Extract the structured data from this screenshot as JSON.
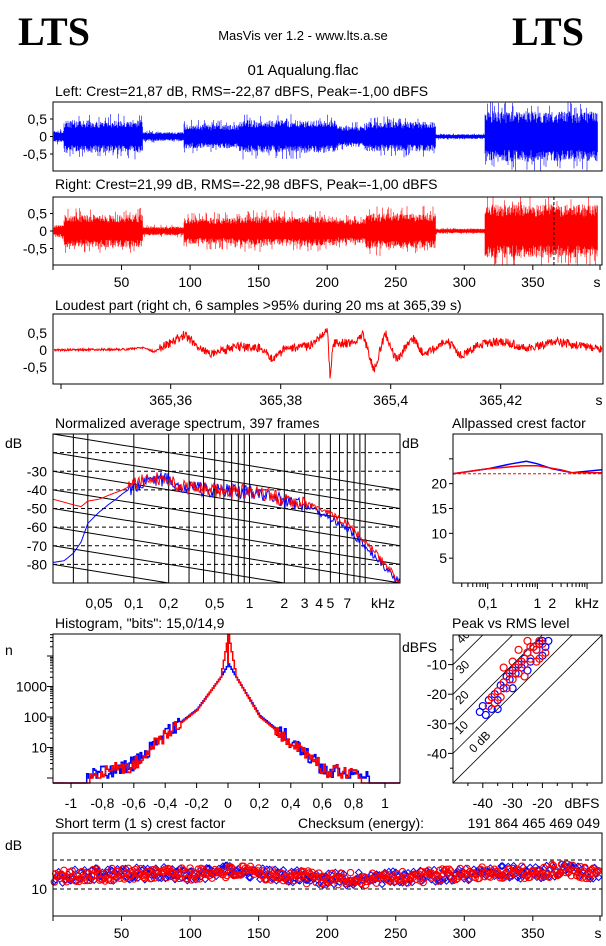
{
  "header": {
    "logo_left": "LTS",
    "logo_right": "LTS",
    "app_title": "MasVis ver 1.2 - www.lts.a.se",
    "file_name": "01 Aqualung.flac"
  },
  "colors": {
    "left": "#0000ff",
    "right": "#ff0000",
    "grid": "#000000"
  },
  "chart_data": [
    {
      "id": "left_waveform",
      "type": "area",
      "title": "Left: Crest=21,87 dB, RMS=-22,87 dBFS, Peak=-1,00 dBFS",
      "ylim": [
        -1,
        1
      ],
      "yticks": [
        "0,5",
        "0",
        "-0,5"
      ],
      "ytick_values": [
        0.5,
        0,
        -0.5
      ],
      "xlim": [
        0,
        399
      ],
      "envelope_segments_s_start_end_amp": [
        [
          0,
          8,
          0.2
        ],
        [
          8,
          65,
          0.55
        ],
        [
          65,
          95,
          0.15
        ],
        [
          95,
          135,
          0.4
        ],
        [
          135,
          207,
          0.55
        ],
        [
          207,
          228,
          0.35
        ],
        [
          228,
          279,
          0.5
        ],
        [
          279,
          315,
          0.08
        ],
        [
          315,
          398,
          0.85
        ]
      ]
    },
    {
      "id": "right_waveform",
      "type": "area",
      "title": "Right: Crest=21,99 dB, RMS=-22,98 dBFS, Peak=-1,00 dBFS",
      "ylim": [
        -1,
        1
      ],
      "yticks": [
        "0,5",
        "0",
        "-0,5"
      ],
      "ytick_values": [
        0.5,
        0,
        -0.5
      ],
      "xlim": [
        0,
        399
      ],
      "xticks": [
        "50",
        "100",
        "150",
        "200",
        "250",
        "300",
        "350"
      ],
      "xtick_values": [
        50,
        100,
        150,
        200,
        250,
        300,
        350
      ],
      "xunit": "s",
      "marker_s": 365.39,
      "envelope_segments_s_start_end_amp": [
        [
          0,
          8,
          0.2
        ],
        [
          8,
          65,
          0.55
        ],
        [
          65,
          95,
          0.15
        ],
        [
          95,
          135,
          0.45
        ],
        [
          135,
          207,
          0.5
        ],
        [
          207,
          228,
          0.4
        ],
        [
          228,
          279,
          0.6
        ],
        [
          279,
          315,
          0.08
        ],
        [
          315,
          398,
          0.9
        ]
      ]
    },
    {
      "id": "loudest_part",
      "type": "line",
      "title": "Loudest part (right ch, 6 samples >95% during 20 ms at 365,39 s)",
      "ylim": [
        -1,
        1
      ],
      "yticks": [
        "0,5",
        "0",
        "-0,5"
      ],
      "ytick_values": [
        0.5,
        0,
        -0.5
      ],
      "xlim": [
        365.3386,
        365.4386
      ],
      "xticks": [
        "365,36",
        "365,38",
        "365,4",
        "365,42"
      ],
      "xtick_values": [
        365.36,
        365.38,
        365.4,
        365.42
      ],
      "xunit": "s",
      "points": [
        [
          365.339,
          0
        ],
        [
          365.352,
          0.02
        ],
        [
          365.355,
          0.08
        ],
        [
          365.357,
          -0.05
        ],
        [
          365.3625,
          0.45
        ],
        [
          365.365,
          0.1
        ],
        [
          365.367,
          -0.1
        ],
        [
          365.372,
          0.1
        ],
        [
          365.377,
          0.05
        ],
        [
          365.378,
          -0.3
        ],
        [
          365.381,
          0.05
        ],
        [
          365.385,
          0.1
        ],
        [
          365.3885,
          0.6
        ],
        [
          365.389,
          -0.85
        ],
        [
          365.3895,
          0.2
        ],
        [
          365.393,
          0.2
        ],
        [
          365.395,
          0.45
        ],
        [
          365.397,
          -0.6
        ],
        [
          365.399,
          0.5
        ],
        [
          365.401,
          -0.3
        ],
        [
          365.404,
          0.35
        ],
        [
          365.406,
          -0.15
        ],
        [
          365.41,
          0.3
        ],
        [
          365.413,
          -0.2
        ],
        [
          365.416,
          0.2
        ],
        [
          365.42,
          0.25
        ],
        [
          365.425,
          0.05
        ],
        [
          365.43,
          0.25
        ],
        [
          365.4386,
          0
        ]
      ]
    },
    {
      "id": "spectrum",
      "type": "line",
      "title": "Normalized average spectrum, 397 frames",
      "ylabel": "dB",
      "xunit": "kHz",
      "xscale": "log",
      "xlim": [
        0.02,
        20
      ],
      "ylim": [
        -90,
        -10
      ],
      "yticks": [
        "-30",
        "-40",
        "-50",
        "-60",
        "-70",
        "-80"
      ],
      "ytick_values": [
        -30,
        -40,
        -50,
        -60,
        -70,
        -80
      ],
      "xticks": [
        "0,05",
        "0,1",
        "0,2",
        "0,5",
        "1",
        "2",
        "3",
        "4",
        "5",
        "7"
      ],
      "xtick_values": [
        0.05,
        0.1,
        0.2,
        0.5,
        1,
        2,
        3,
        4,
        5,
        7
      ],
      "series": [
        {
          "channel": "left",
          "points": [
            [
              0.02,
              -79
            ],
            [
              0.025,
              -78
            ],
            [
              0.03,
              -74
            ],
            [
              0.035,
              -68
            ],
            [
              0.04,
              -58
            ],
            [
              0.05,
              -52
            ],
            [
              0.06,
              -48
            ],
            [
              0.07,
              -45
            ],
            [
              0.08,
              -42
            ],
            [
              0.1,
              -38
            ],
            [
              0.15,
              -34
            ],
            [
              0.2,
              -35
            ],
            [
              0.3,
              -39
            ],
            [
              0.5,
              -40
            ],
            [
              0.7,
              -41
            ],
            [
              1,
              -41
            ],
            [
              1.5,
              -43
            ],
            [
              2,
              -46
            ],
            [
              3,
              -48
            ],
            [
              4,
              -52
            ],
            [
              5,
              -55
            ],
            [
              7,
              -61
            ],
            [
              10,
              -70
            ],
            [
              15,
              -82
            ],
            [
              20,
              -90
            ]
          ]
        },
        {
          "channel": "right",
          "points": [
            [
              0.02,
              -45
            ],
            [
              0.03,
              -48
            ],
            [
              0.035,
              -49
            ],
            [
              0.04,
              -46
            ],
            [
              0.05,
              -45
            ],
            [
              0.06,
              -43
            ],
            [
              0.08,
              -40
            ],
            [
              0.1,
              -37
            ],
            [
              0.15,
              -33
            ],
            [
              0.2,
              -35
            ],
            [
              0.3,
              -39
            ],
            [
              0.5,
              -40
            ],
            [
              0.7,
              -41
            ],
            [
              1,
              -41
            ],
            [
              1.5,
              -43
            ],
            [
              2,
              -45
            ],
            [
              3,
              -47
            ],
            [
              4,
              -50
            ],
            [
              5,
              -53
            ],
            [
              7,
              -58
            ],
            [
              10,
              -68
            ],
            [
              15,
              -80
            ],
            [
              20,
              -90
            ]
          ]
        }
      ]
    },
    {
      "id": "allpassed_crest",
      "type": "line",
      "title": "Allpassed crest factor",
      "ylabel": "dB",
      "xunit": "kHz",
      "xscale": "log",
      "xlim": [
        0.02,
        20
      ],
      "ylim": [
        0,
        30
      ],
      "yticks": [
        "20",
        "15",
        "10",
        "5"
      ],
      "ytick_values": [
        20,
        15,
        10,
        5
      ],
      "xticks": [
        "0,1",
        "1",
        "2"
      ],
      "xtick_values": [
        0.1,
        1,
        2
      ],
      "reference_dB": 22,
      "series": [
        {
          "channel": "left",
          "points": [
            [
              0.02,
              22
            ],
            [
              0.1,
              23
            ],
            [
              0.3,
              24
            ],
            [
              0.6,
              24.5
            ],
            [
              1,
              24
            ],
            [
              2,
              23
            ],
            [
              5,
              22.2
            ],
            [
              10,
              22.5
            ],
            [
              20,
              22.8
            ]
          ]
        },
        {
          "channel": "right",
          "points": [
            [
              0.02,
              22
            ],
            [
              0.1,
              23
            ],
            [
              0.5,
              23.6
            ],
            [
              1,
              23.6
            ],
            [
              3,
              22.8
            ],
            [
              5,
              22.2
            ],
            [
              20,
              22.2
            ]
          ]
        }
      ]
    },
    {
      "id": "histogram",
      "type": "line",
      "title": "Histogram, \"bits\": 15,0/14,9",
      "ylabel": "n",
      "yscale": "log",
      "xlim": [
        -1.11,
        1.1
      ],
      "ylim": [
        0.7,
        52000
      ],
      "yticks": [
        "1000",
        "100",
        "10"
      ],
      "ytick_values": [
        1000,
        100,
        10
      ],
      "xticks": [
        "-1",
        "-0,8",
        "-0,6",
        "-0,4",
        "-0,2",
        "0",
        "0,2",
        "0,4",
        "0,6",
        "0,8",
        "1"
      ],
      "xtick_values": [
        -1,
        -0.8,
        -0.6,
        -0.4,
        -0.2,
        0,
        0.2,
        0.4,
        0.6,
        0.8,
        1
      ],
      "series": [
        {
          "channel": "left",
          "points": [
            [
              -0.9,
              1
            ],
            [
              -0.6,
              3
            ],
            [
              -0.4,
              28
            ],
            [
              -0.2,
              180
            ],
            [
              -0.05,
              2000
            ],
            [
              0,
              5500
            ],
            [
              0.05,
              2000
            ],
            [
              0.2,
              110
            ],
            [
              0.4,
              16
            ],
            [
              0.6,
              2
            ],
            [
              0.9,
              1
            ]
          ]
        },
        {
          "channel": "right",
          "points": [
            [
              -0.88,
              1
            ],
            [
              -0.6,
              3
            ],
            [
              -0.4,
              26
            ],
            [
              -0.2,
              170
            ],
            [
              -0.05,
              2000
            ],
            [
              0,
              50000
            ],
            [
              0.05,
              2000
            ],
            [
              0.2,
              100
            ],
            [
              0.4,
              14
            ],
            [
              0.6,
              2
            ],
            [
              0.85,
              1
            ]
          ]
        }
      ]
    },
    {
      "id": "peak_vs_rms",
      "type": "scatter",
      "title": "Peak vs RMS level",
      "ylabel": "dBFS",
      "xlabel": "dBFS",
      "xlim": [
        -50,
        0
      ],
      "ylim": [
        -50,
        0
      ],
      "yticks": [
        "-10",
        "-20",
        "-30",
        "-40"
      ],
      "ytick_values": [
        -10,
        -20,
        -30,
        -40
      ],
      "xticks": [
        "-40",
        "-30",
        "-20"
      ],
      "xtick_values": [
        -40,
        -30,
        -20
      ],
      "crest_lines": [
        {
          "crest": 0,
          "label": "0 dB"
        },
        {
          "crest": 10,
          "label": "10"
        },
        {
          "crest": 20,
          "label": "20"
        },
        {
          "crest": 30,
          "label": "30"
        },
        {
          "crest": 40,
          "label": "40"
        }
      ],
      "series": [
        {
          "channel": "left",
          "points": [
            [
              -41,
              -26
            ],
            [
              -40,
              -24
            ],
            [
              -39,
              -27
            ],
            [
              -38,
              -22
            ],
            [
              -37,
              -25
            ],
            [
              -36,
              -20
            ],
            [
              -35,
              -22
            ],
            [
              -34,
              -17
            ],
            [
              -33,
              -18
            ],
            [
              -32,
              -14
            ],
            [
              -31,
              -15
            ],
            [
              -30,
              -12
            ],
            [
              -29,
              -13
            ],
            [
              -28,
              -10
            ],
            [
              -27,
              -11
            ],
            [
              -26,
              -8
            ],
            [
              -25,
              -6
            ],
            [
              -24,
              -9
            ],
            [
              -23,
              -4
            ],
            [
              -22,
              -5
            ],
            [
              -21,
              -3
            ],
            [
              -20,
              -2
            ],
            [
              -19,
              -4
            ],
            [
              -18,
              -2
            ],
            [
              -20,
              -7
            ],
            [
              -25,
              -12
            ],
            [
              -30,
              -18
            ],
            [
              -35,
              -25
            ]
          ]
        },
        {
          "channel": "right",
          "points": [
            [
              -38,
              -24
            ],
            [
              -37,
              -21
            ],
            [
              -36,
              -23
            ],
            [
              -35,
              -19
            ],
            [
              -34,
              -21
            ],
            [
              -33,
              -16
            ],
            [
              -32,
              -18
            ],
            [
              -31,
              -13
            ],
            [
              -30,
              -15
            ],
            [
              -29,
              -11
            ],
            [
              -28,
              -13
            ],
            [
              -27,
              -9
            ],
            [
              -26,
              -10
            ],
            [
              -25,
              -6
            ],
            [
              -24,
              -8
            ],
            [
              -23,
              -4
            ],
            [
              -22,
              -5
            ],
            [
              -21,
              -2
            ],
            [
              -20,
              -3
            ],
            [
              -19,
              -6
            ],
            [
              -21,
              -8
            ],
            [
              -24,
              -4
            ],
            [
              -26,
              -14
            ],
            [
              -28,
              -5
            ],
            [
              -30,
              -9
            ],
            [
              -33,
              -11
            ],
            [
              -25,
              -2
            ],
            [
              -22,
              -9
            ]
          ]
        }
      ]
    },
    {
      "id": "short_term_crest",
      "type": "scatter",
      "title": "Short term (1 s) crest factor",
      "ylabel": "dB",
      "ylim": [
        0.7,
        29.3
      ],
      "yticks": [
        "10"
      ],
      "ytick_values": [
        10
      ],
      "gridlines_dB": [
        10,
        20
      ],
      "xlim": [
        0,
        399
      ],
      "xticks": [
        "50",
        "100",
        "150",
        "200",
        "250",
        "300",
        "350"
      ],
      "xtick_values": [
        50,
        100,
        150,
        200,
        250,
        300,
        350
      ],
      "xunit": "s",
      "mean_profile_s_dB": [
        [
          0,
          14
        ],
        [
          25,
          15
        ],
        [
          50,
          15
        ],
        [
          75,
          15.5
        ],
        [
          100,
          15
        ],
        [
          125,
          16
        ],
        [
          150,
          15.5
        ],
        [
          175,
          14.5
        ],
        [
          200,
          13.5
        ],
        [
          225,
          13.5
        ],
        [
          250,
          14
        ],
        [
          275,
          14.5
        ],
        [
          300,
          15
        ],
        [
          325,
          16
        ],
        [
          350,
          15.5
        ],
        [
          375,
          17
        ],
        [
          397,
          15
        ]
      ]
    }
  ],
  "checksum": {
    "label": "Checksum (energy):",
    "value": "191 864 465 469 049"
  }
}
